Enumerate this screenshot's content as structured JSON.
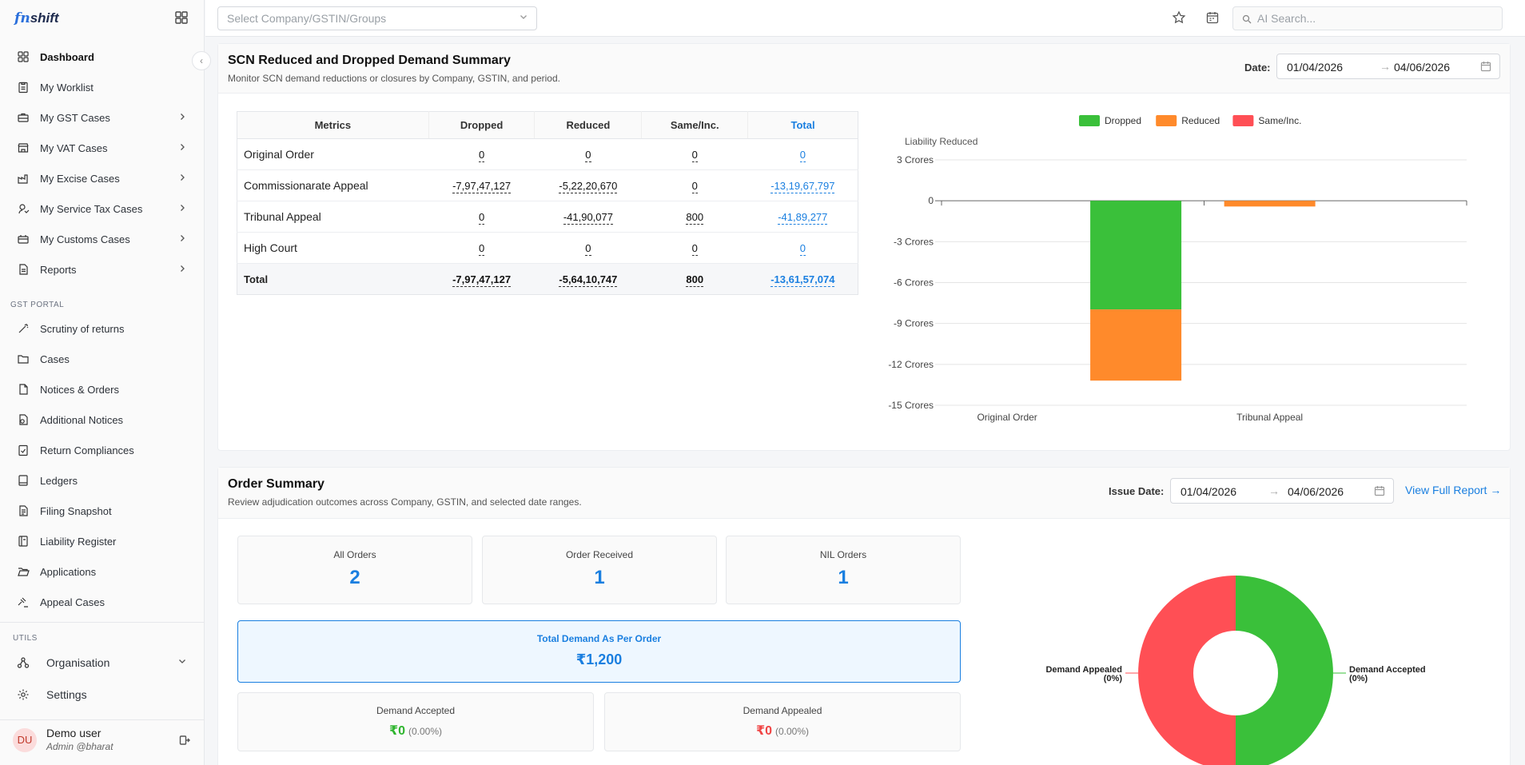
{
  "brand": {
    "prefix": "fn",
    "name": "shift"
  },
  "sidebar": {
    "items": [
      {
        "label": "Dashboard",
        "icon": "dashboard-icon",
        "active": true,
        "chevron": false
      },
      {
        "label": "My Worklist",
        "icon": "clipboard-icon",
        "chevron": false
      },
      {
        "label": "My GST Cases",
        "icon": "briefcase-icon",
        "chevron": true
      },
      {
        "label": "My VAT Cases",
        "icon": "store-icon",
        "chevron": true
      },
      {
        "label": "My Excise Cases",
        "icon": "factory-icon",
        "chevron": true
      },
      {
        "label": "My Service Tax Cases",
        "icon": "service-icon",
        "chevron": true
      },
      {
        "label": "My Customs Cases",
        "icon": "customs-icon",
        "chevron": true
      },
      {
        "label": "Reports",
        "icon": "report-icon",
        "chevron": true
      }
    ],
    "gst_label": "GST PORTAL",
    "gst_items": [
      {
        "label": "Scrutiny of returns",
        "icon": "wand-icon"
      },
      {
        "label": "Cases",
        "icon": "folder-icon"
      },
      {
        "label": "Notices & Orders",
        "icon": "file-icon"
      },
      {
        "label": "Additional Notices",
        "icon": "file-plus-icon"
      },
      {
        "label": "Return Compliances",
        "icon": "clipboard-check-icon"
      },
      {
        "label": "Ledgers",
        "icon": "book-icon"
      },
      {
        "label": "Filing Snapshot",
        "icon": "file-text-icon"
      },
      {
        "label": "Liability Register",
        "icon": "notebook-icon"
      },
      {
        "label": "Applications",
        "icon": "folder-open-icon"
      },
      {
        "label": "Appeal Cases",
        "icon": "gavel-icon"
      }
    ],
    "utils_label": "UTILS",
    "utils_items": [
      {
        "label": "Organisation",
        "icon": "org-icon",
        "chevron": true
      },
      {
        "label": "Settings",
        "icon": "gear-icon",
        "chevron": false
      }
    ],
    "user": {
      "initials": "DU",
      "name": "Demo user",
      "role": "Admin @bharat"
    }
  },
  "topbar": {
    "company_placeholder": "Select Company/GSTIN/Groups",
    "search_placeholder": "AI Search..."
  },
  "scn": {
    "title": "SCN Reduced and Dropped Demand Summary",
    "subtitle": "Monitor SCN demand reductions or closures by Company, GSTIN, and period.",
    "date_label": "Date:",
    "date_from": "01/04/2026",
    "date_to": "04/06/2026",
    "columns": [
      "Metrics",
      "Dropped",
      "Reduced",
      "Same/Inc.",
      "Total"
    ],
    "rows": [
      {
        "metric": "Original Order",
        "dropped": "0",
        "reduced": "0",
        "same": "0",
        "total": "0"
      },
      {
        "metric": "Commissionarate Appeal",
        "dropped": "-7,97,47,127",
        "reduced": "-5,22,20,670",
        "same": "0",
        "total": "-13,19,67,797"
      },
      {
        "metric": "Tribunal Appeal",
        "dropped": "0",
        "reduced": "-41,90,077",
        "same": "800",
        "total": "-41,89,277"
      },
      {
        "metric": "High Court",
        "dropped": "0",
        "reduced": "0",
        "same": "0",
        "total": "0"
      }
    ],
    "total_row": {
      "metric": "Total",
      "dropped": "-7,97,47,127",
      "reduced": "-5,64,10,747",
      "same": "800",
      "total": "-13,61,57,074"
    }
  },
  "chart_data": [
    {
      "type": "bar",
      "stacked": true,
      "ylabel": "Liability Reduced",
      "categories": [
        "Original Order",
        "Tribunal Appeal"
      ],
      "yticks": [
        "3 Crores",
        "0",
        "-3 Crores",
        "-6 Crores",
        "-9 Crores",
        "-12 Crores",
        "-15 Crores"
      ],
      "ylim": [
        -15,
        3
      ],
      "bars": [
        {
          "position": 0.37,
          "segments": [
            {
              "series": "Dropped",
              "value": -7.97
            },
            {
              "series": "Reduced",
              "value": -5.22
            }
          ]
        },
        {
          "position": 0.625,
          "segments": [
            {
              "series": "Reduced",
              "value": -0.42
            },
            {
              "series": "Same/Inc.",
              "value": 8e-05
            }
          ]
        }
      ],
      "series": [
        {
          "name": "Dropped",
          "color": "#3ac03a"
        },
        {
          "name": "Reduced",
          "color": "#ff8a2b"
        },
        {
          "name": "Same/Inc.",
          "color": "#ff4f55"
        }
      ],
      "legend": "top",
      "grid": true
    },
    {
      "type": "pie",
      "donut": true,
      "slices": [
        {
          "label": "Demand Accepted",
          "pct": "(0%)",
          "value": 50,
          "color": "#3ac03a"
        },
        {
          "label": "Demand Appealed",
          "pct": "(0%)",
          "value": 50,
          "color": "#ff4f55"
        }
      ]
    }
  ],
  "orders": {
    "title": "Order Summary",
    "subtitle": "Review adjudication outcomes across Company, GSTIN, and selected date ranges.",
    "date_label": "Issue Date:",
    "date_from": "01/04/2026",
    "date_to": "04/06/2026",
    "view_report": "View Full Report →",
    "stats": [
      {
        "label": "All Orders",
        "value": "2"
      },
      {
        "label": "Order Received",
        "value": "1"
      },
      {
        "label": "NIL Orders",
        "value": "1"
      }
    ],
    "total_demand_label": "Total Demand As Per Order",
    "total_demand_value": "₹1,200",
    "accepted": {
      "label": "Demand Accepted",
      "value": "₹0",
      "pct": "(0.00%)",
      "color": "#2fb52f"
    },
    "appealed": {
      "label": "Demand Appealed",
      "value": "₹0",
      "pct": "(0.00%)",
      "color": "#f04545"
    }
  }
}
